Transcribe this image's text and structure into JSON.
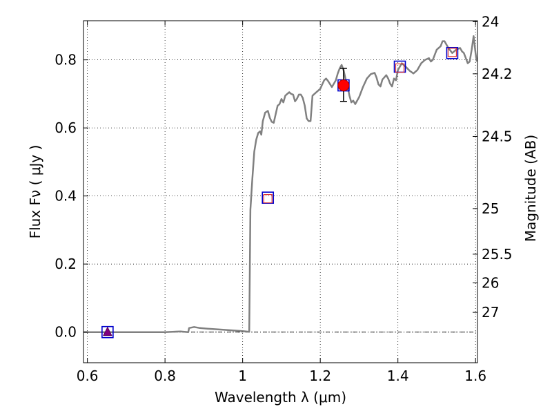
{
  "chart_data": {
    "type": "scatter",
    "xlabel": "Wavelength  λ (μm)",
    "ylabel": "Flux  Fν  ( μJy )",
    "y2label": "Magnitude (AB)",
    "xlim": [
      0.59,
      1.605
    ],
    "ylim": [
      -0.09,
      0.915
    ],
    "grid": true,
    "x_ticks": [
      {
        "value": 0.6,
        "label": "0.6"
      },
      {
        "value": 0.8,
        "label": "0.8"
      },
      {
        "value": 1.0,
        "label": "1"
      },
      {
        "value": 1.2,
        "label": "1.2"
      },
      {
        "value": 1.4,
        "label": "1.4"
      },
      {
        "value": 1.6,
        "label": "1.6"
      }
    ],
    "y_ticks": [
      {
        "value": 0.0,
        "label": "0.0"
      },
      {
        "value": 0.2,
        "label": "0.2"
      },
      {
        "value": 0.4,
        "label": "0.4"
      },
      {
        "value": 0.6,
        "label": "0.6"
      },
      {
        "value": 0.8,
        "label": "0.8"
      }
    ],
    "y2_ticks": [
      {
        "flux": 0.912,
        "label": "24"
      },
      {
        "flux": 0.759,
        "label": "24.2"
      },
      {
        "flux": 0.575,
        "label": "24.5"
      },
      {
        "flux": 0.363,
        "label": "25"
      },
      {
        "flux": 0.229,
        "label": "25.5"
      },
      {
        "flux": 0.145,
        "label": "26"
      },
      {
        "flux": 0.058,
        "label": "27"
      }
    ],
    "series": [
      {
        "kind": "sed_model_line",
        "color": "#808080",
        "points": [
          [
            0.59,
            0.0
          ],
          [
            0.8,
            0.0
          ],
          [
            0.84,
            0.002
          ],
          [
            0.86,
            0.0
          ],
          [
            0.862,
            0.012
          ],
          [
            0.875,
            0.015
          ],
          [
            0.89,
            0.012
          ],
          [
            0.91,
            0.01
          ],
          [
            0.95,
            0.007
          ],
          [
            1.0,
            0.003
          ],
          [
            1.017,
            0.001
          ],
          [
            1.02,
            0.36
          ],
          [
            1.025,
            0.45
          ],
          [
            1.03,
            0.53
          ],
          [
            1.035,
            0.565
          ],
          [
            1.04,
            0.585
          ],
          [
            1.045,
            0.59
          ],
          [
            1.048,
            0.58
          ],
          [
            1.052,
            0.62
          ],
          [
            1.058,
            0.645
          ],
          [
            1.065,
            0.65
          ],
          [
            1.07,
            0.63
          ],
          [
            1.075,
            0.618
          ],
          [
            1.08,
            0.615
          ],
          [
            1.085,
            0.64
          ],
          [
            1.09,
            0.665
          ],
          [
            1.095,
            0.67
          ],
          [
            1.1,
            0.685
          ],
          [
            1.105,
            0.675
          ],
          [
            1.11,
            0.695
          ],
          [
            1.115,
            0.7
          ],
          [
            1.12,
            0.705
          ],
          [
            1.125,
            0.7
          ],
          [
            1.13,
            0.698
          ],
          [
            1.135,
            0.678
          ],
          [
            1.14,
            0.686
          ],
          [
            1.145,
            0.698
          ],
          [
            1.15,
            0.698
          ],
          [
            1.155,
            0.688
          ],
          [
            1.16,
            0.665
          ],
          [
            1.165,
            0.628
          ],
          [
            1.17,
            0.62
          ],
          [
            1.175,
            0.62
          ],
          [
            1.18,
            0.695
          ],
          [
            1.19,
            0.705
          ],
          [
            1.2,
            0.715
          ],
          [
            1.205,
            0.728
          ],
          [
            1.21,
            0.74
          ],
          [
            1.215,
            0.745
          ],
          [
            1.22,
            0.738
          ],
          [
            1.23,
            0.72
          ],
          [
            1.24,
            0.74
          ],
          [
            1.245,
            0.76
          ],
          [
            1.25,
            0.775
          ],
          [
            1.255,
            0.785
          ],
          [
            1.26,
            0.77
          ],
          [
            1.265,
            0.745
          ],
          [
            1.27,
            0.725
          ],
          [
            1.275,
            0.695
          ],
          [
            1.28,
            0.675
          ],
          [
            1.285,
            0.68
          ],
          [
            1.29,
            0.67
          ],
          [
            1.3,
            0.69
          ],
          [
            1.31,
            0.72
          ],
          [
            1.32,
            0.745
          ],
          [
            1.33,
            0.758
          ],
          [
            1.34,
            0.762
          ],
          [
            1.345,
            0.748
          ],
          [
            1.35,
            0.728
          ],
          [
            1.355,
            0.722
          ],
          [
            1.36,
            0.742
          ],
          [
            1.37,
            0.755
          ],
          [
            1.375,
            0.745
          ],
          [
            1.38,
            0.73
          ],
          [
            1.385,
            0.722
          ],
          [
            1.39,
            0.745
          ],
          [
            1.395,
            0.74
          ],
          [
            1.4,
            0.77
          ],
          [
            1.41,
            0.79
          ],
          [
            1.42,
            0.78
          ],
          [
            1.43,
            0.768
          ],
          [
            1.44,
            0.76
          ],
          [
            1.45,
            0.77
          ],
          [
            1.46,
            0.79
          ],
          [
            1.47,
            0.8
          ],
          [
            1.48,
            0.805
          ],
          [
            1.485,
            0.795
          ],
          [
            1.49,
            0.8
          ],
          [
            1.5,
            0.83
          ],
          [
            1.51,
            0.84
          ],
          [
            1.515,
            0.855
          ],
          [
            1.52,
            0.855
          ],
          [
            1.525,
            0.845
          ],
          [
            1.53,
            0.835
          ],
          [
            1.54,
            0.82
          ],
          [
            1.55,
            0.83
          ],
          [
            1.56,
            0.835
          ],
          [
            1.565,
            0.825
          ],
          [
            1.57,
            0.82
          ],
          [
            1.575,
            0.805
          ],
          [
            1.58,
            0.79
          ],
          [
            1.585,
            0.795
          ],
          [
            1.59,
            0.83
          ],
          [
            1.595,
            0.87
          ],
          [
            1.6,
            0.82
          ],
          [
            1.603,
            0.795
          ]
        ]
      },
      {
        "kind": "model_photometry_boxes",
        "color": "#0000cc",
        "points": [
          [
            0.652,
            0.0
          ],
          [
            1.065,
            0.395
          ],
          [
            1.26,
            0.725
          ],
          [
            1.405,
            0.78
          ],
          [
            1.54,
            0.82
          ]
        ]
      },
      {
        "kind": "model_photometry_small_boxes",
        "color": "#dd3333",
        "points": [
          [
            1.065,
            0.392
          ],
          [
            1.405,
            0.776
          ],
          [
            1.54,
            0.822
          ]
        ]
      },
      {
        "kind": "detected_photometry",
        "color": "#ff0000",
        "points": [
          [
            1.26,
            0.725
          ]
        ],
        "errors": [
          [
            0.678,
            0.775
          ]
        ]
      },
      {
        "kind": "upper_limit_triangle",
        "color": "#800080",
        "points": [
          [
            0.652,
            0.0
          ]
        ]
      }
    ]
  }
}
